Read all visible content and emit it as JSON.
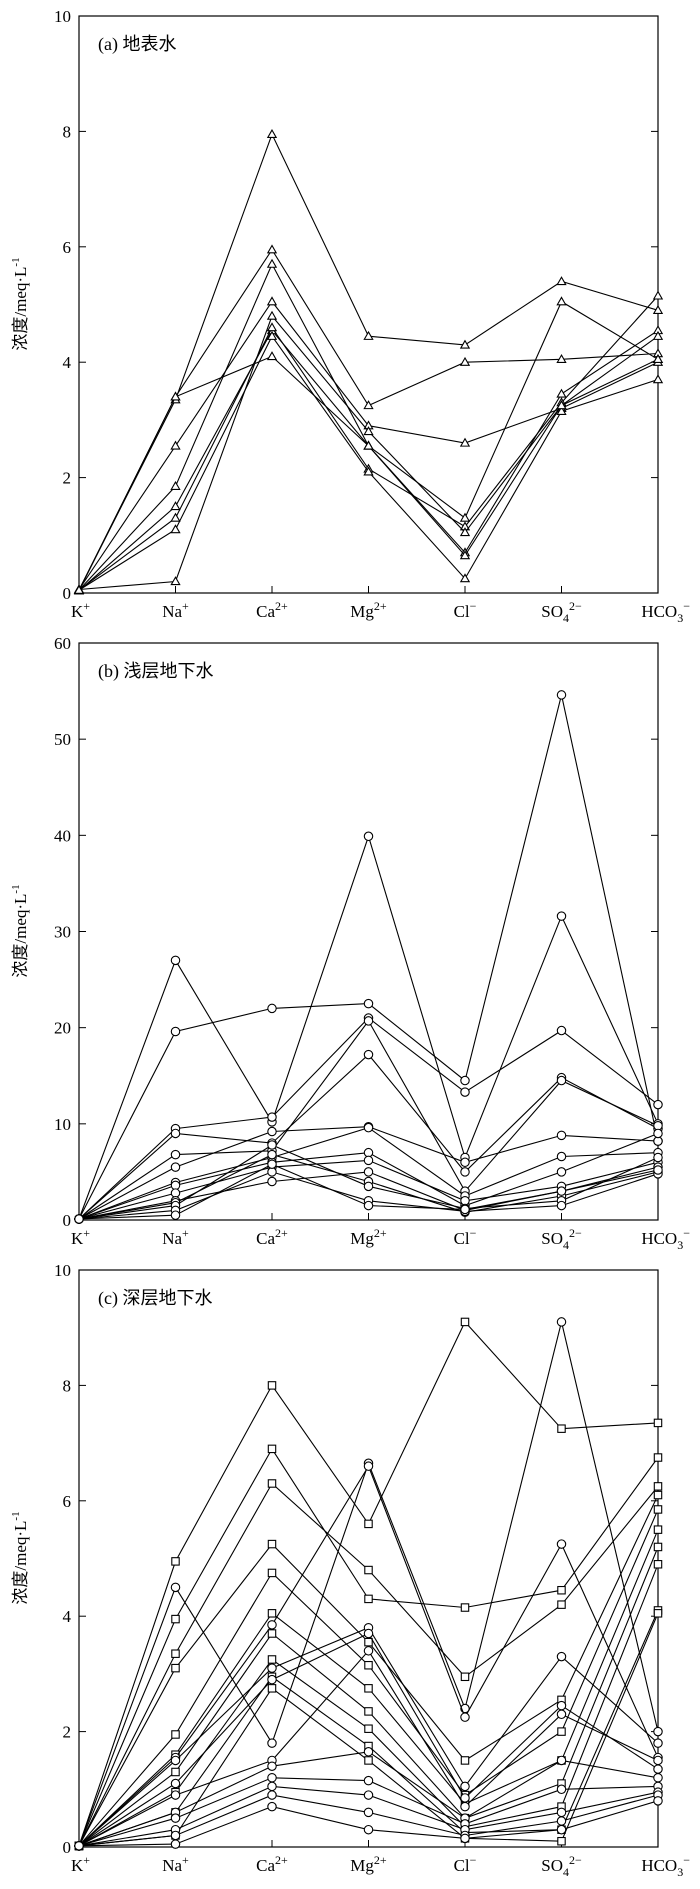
{
  "panels": [
    {
      "title": "(a) 地表水",
      "ylabel": "浓度/meq·L",
      "ylabel_sup": "-1",
      "ylim": [
        0,
        10
      ],
      "yticks": [
        "0",
        "2",
        "4",
        "6",
        "8",
        "10"
      ],
      "marker": "triangle"
    },
    {
      "title": "(b) 浅层地下水",
      "ylabel": "浓度/meq·L",
      "ylabel_sup": "-1",
      "ylim": [
        0,
        60
      ],
      "yticks": [
        "0",
        "10",
        "20",
        "30",
        "40",
        "50",
        "60"
      ],
      "marker": "circle"
    },
    {
      "title": "(c) 深层地下水",
      "ylabel": "浓度/meq·L",
      "ylabel_sup": "-1",
      "ylim": [
        0,
        10
      ],
      "yticks": [
        "0",
        "2",
        "4",
        "6",
        "8",
        "10"
      ],
      "marker": "mixed"
    }
  ],
  "categories": [
    {
      "base": "K",
      "sup": "+"
    },
    {
      "base": "Na",
      "sup": "+"
    },
    {
      "base": "Ca",
      "sup": "2+"
    },
    {
      "base": "Mg",
      "sup": "2+"
    },
    {
      "base": "Cl",
      "sup": "−"
    },
    {
      "base": "SO",
      "sub": "4",
      "sup": "2−"
    },
    {
      "base": "HCO",
      "sub": "3",
      "sup": "−"
    }
  ],
  "chart_data": [
    {
      "type": "line",
      "title": "(a) 地表水",
      "ylabel": "浓度/meq·L-1",
      "categories": [
        "K+",
        "Na+",
        "Ca2+",
        "Mg2+",
        "Cl−",
        "SO42−",
        "HCO3−"
      ],
      "ylim": [
        0,
        10
      ],
      "marker": "triangle",
      "series": [
        {
          "values": [
            0.05,
            3.35,
            7.95,
            4.45,
            4.3,
            5.4,
            4.9
          ]
        },
        {
          "values": [
            0.04,
            3.4,
            5.95,
            3.25,
            4.0,
            4.05,
            4.15
          ]
        },
        {
          "values": [
            0.06,
            2.55,
            5.05,
            2.9,
            2.6,
            3.2,
            4.0
          ]
        },
        {
          "values": [
            0.05,
            1.85,
            5.7,
            2.55,
            1.3,
            5.05,
            4.05
          ]
        },
        {
          "values": [
            0.04,
            1.5,
            4.55,
            2.55,
            0.7,
            3.45,
            4.55
          ]
        },
        {
          "values": [
            0.05,
            1.3,
            4.6,
            2.15,
            1.15,
            3.3,
            5.15
          ]
        },
        {
          "values": [
            0.05,
            1.1,
            4.45,
            2.1,
            0.25,
            3.15,
            3.7
          ]
        },
        {
          "values": [
            0.06,
            0.2,
            4.8,
            2.8,
            1.05,
            3.25,
            4.05
          ]
        },
        {
          "values": [
            0.05,
            3.4,
            4.1,
            2.55,
            0.65,
            3.25,
            4.45
          ]
        }
      ]
    },
    {
      "type": "line",
      "title": "(b) 浅层地下水",
      "ylabel": "浓度/meq·L-1",
      "categories": [
        "K+",
        "Na+",
        "Ca2+",
        "Mg2+",
        "Cl−",
        "SO42−",
        "HCO3−"
      ],
      "ylim": [
        0,
        60
      ],
      "marker": "circle",
      "series": [
        {
          "values": [
            0.1,
            19.6,
            22.0,
            22.5,
            14.5,
            54.6,
            8.2
          ]
        },
        {
          "values": [
            0.1,
            27.0,
            10.2,
            39.9,
            6.5,
            31.6,
            10.0
          ]
        },
        {
          "values": [
            0.1,
            9.5,
            10.7,
            21.0,
            13.3,
            19.7,
            12.0
          ]
        },
        {
          "values": [
            0.1,
            9.0,
            8.0,
            17.2,
            5.0,
            14.8,
            9.5
          ]
        },
        {
          "values": [
            0.1,
            6.8,
            7.2,
            20.7,
            3.0,
            14.5,
            9.8
          ]
        },
        {
          "values": [
            0.1,
            5.5,
            9.2,
            9.7,
            6.0,
            8.8,
            8.2
          ]
        },
        {
          "values": [
            0.1,
            3.9,
            6.5,
            9.6,
            2.5,
            6.6,
            7.0
          ]
        },
        {
          "values": [
            0.1,
            3.6,
            6.0,
            7.0,
            1.5,
            5.0,
            9.0
          ]
        },
        {
          "values": [
            0.1,
            2.8,
            5.5,
            6.2,
            2.0,
            3.5,
            6.0
          ]
        },
        {
          "values": [
            0.1,
            2.0,
            4.0,
            5.0,
            1.0,
            3.0,
            5.5
          ]
        },
        {
          "values": [
            0.1,
            1.8,
            6.8,
            4.0,
            0.8,
            2.5,
            5.0
          ]
        },
        {
          "values": [
            0.1,
            1.5,
            7.8,
            3.5,
            1.2,
            2.0,
            6.5
          ]
        },
        {
          "values": [
            0.1,
            1.0,
            5.0,
            2.0,
            0.9,
            1.5,
            4.8
          ]
        },
        {
          "values": [
            0.1,
            0.5,
            5.8,
            1.5,
            1.1,
            3.0,
            5.2
          ]
        }
      ]
    },
    {
      "type": "line",
      "title": "(c) 深层地下水",
      "ylabel": "浓度/meq·L-1",
      "categories": [
        "K+",
        "Na+",
        "Ca2+",
        "Mg2+",
        "Cl−",
        "SO42−",
        "HCO3−"
      ],
      "ylim": [
        0,
        10
      ],
      "marker": "mixed",
      "series": [
        {
          "marker": "square",
          "values": [
            0.02,
            4.95,
            8.0,
            5.6,
            9.1,
            7.25,
            7.35
          ]
        },
        {
          "marker": "square",
          "values": [
            0.02,
            3.95,
            6.9,
            4.3,
            4.15,
            4.45,
            6.75
          ]
        },
        {
          "marker": "square",
          "values": [
            0.02,
            3.35,
            6.3,
            4.8,
            2.95,
            4.2,
            6.25
          ]
        },
        {
          "marker": "square",
          "values": [
            0.02,
            3.1,
            5.25,
            3.55,
            1.5,
            2.55,
            6.1
          ]
        },
        {
          "marker": "square",
          "values": [
            0.02,
            1.95,
            4.75,
            3.15,
            0.9,
            2.0,
            5.85
          ]
        },
        {
          "marker": "square",
          "values": [
            0.02,
            1.6,
            4.05,
            2.75,
            0.75,
            1.5,
            5.5
          ]
        },
        {
          "marker": "square",
          "values": [
            0.02,
            1.3,
            3.7,
            2.35,
            0.5,
            1.1,
            5.2
          ]
        },
        {
          "marker": "square",
          "values": [
            0.02,
            0.95,
            3.25,
            2.05,
            0.35,
            0.7,
            4.9
          ]
        },
        {
          "marker": "square",
          "values": [
            0.02,
            0.6,
            2.95,
            1.75,
            0.25,
            0.3,
            4.1
          ]
        },
        {
          "marker": "square",
          "values": [
            0.02,
            0.2,
            2.75,
            1.5,
            0.15,
            0.1,
            4.05
          ]
        },
        {
          "marker": "circle",
          "values": [
            0.02,
            4.5,
            1.8,
            6.65,
            2.4,
            9.1,
            2.0
          ]
        },
        {
          "marker": "circle",
          "values": [
            0.02,
            1.55,
            3.85,
            6.6,
            2.25,
            5.25,
            1.55
          ]
        },
        {
          "marker": "circle",
          "values": [
            0.02,
            1.5,
            3.1,
            3.8,
            1.05,
            3.3,
            1.8
          ]
        },
        {
          "marker": "circle",
          "values": [
            0.02,
            1.1,
            2.9,
            3.7,
            0.85,
            2.45,
            1.35
          ]
        },
        {
          "marker": "circle",
          "values": [
            0.02,
            0.9,
            1.5,
            3.4,
            0.7,
            2.3,
            1.5
          ]
        },
        {
          "marker": "circle",
          "values": [
            0.02,
            0.6,
            1.4,
            1.65,
            0.5,
            1.5,
            1.2
          ]
        },
        {
          "marker": "circle",
          "values": [
            0.02,
            0.5,
            1.2,
            1.15,
            0.4,
            1.0,
            1.05
          ]
        },
        {
          "marker": "circle",
          "values": [
            0.02,
            0.3,
            1.05,
            0.9,
            0.3,
            0.6,
            0.95
          ]
        },
        {
          "marker": "circle",
          "values": [
            0.02,
            0.2,
            0.9,
            0.6,
            0.2,
            0.45,
            0.9
          ]
        },
        {
          "marker": "circle",
          "values": [
            0.02,
            0.05,
            0.7,
            0.3,
            0.15,
            0.3,
            0.8
          ]
        }
      ]
    }
  ]
}
